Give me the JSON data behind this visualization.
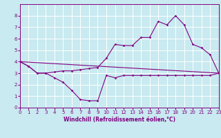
{
  "xlabel": "Windchill (Refroidissement éolien,°C)",
  "bg_color": "#c8eaf0",
  "line_color": "#800080",
  "grid_color": "#ffffff",
  "xlim": [
    0,
    23
  ],
  "ylim": [
    0,
    9
  ],
  "xticks": [
    0,
    1,
    2,
    3,
    4,
    5,
    6,
    7,
    8,
    9,
    10,
    11,
    12,
    13,
    14,
    15,
    16,
    17,
    18,
    19,
    20,
    21,
    22,
    23
  ],
  "yticks": [
    0,
    1,
    2,
    3,
    4,
    5,
    6,
    7,
    8
  ],
  "series1_x": [
    0,
    1,
    2,
    3,
    4,
    5,
    6,
    7,
    8,
    9,
    10,
    11,
    12,
    13,
    14,
    15,
    16,
    17,
    18,
    19,
    20,
    21,
    22,
    23
  ],
  "series1_y": [
    4.0,
    3.6,
    3.0,
    3.0,
    2.6,
    2.2,
    1.5,
    0.7,
    0.6,
    0.6,
    2.8,
    2.6,
    2.8,
    2.8,
    2.8,
    2.8,
    2.8,
    2.8,
    2.8,
    2.8,
    2.8,
    2.8,
    2.8,
    3.0
  ],
  "series2_x": [
    0,
    1,
    2,
    3,
    4,
    5,
    6,
    7,
    8,
    9,
    10,
    11,
    12,
    13,
    14,
    15,
    16,
    17,
    18,
    19,
    20,
    21,
    22,
    23
  ],
  "series2_y": [
    4.0,
    3.6,
    3.0,
    3.0,
    3.1,
    3.2,
    3.2,
    3.3,
    3.4,
    3.5,
    4.3,
    5.5,
    5.4,
    5.4,
    6.1,
    6.1,
    7.5,
    7.2,
    8.0,
    7.2,
    5.5,
    5.2,
    4.6,
    3.0
  ],
  "series3_x": [
    0,
    23
  ],
  "series3_y": [
    4.0,
    3.0
  ]
}
